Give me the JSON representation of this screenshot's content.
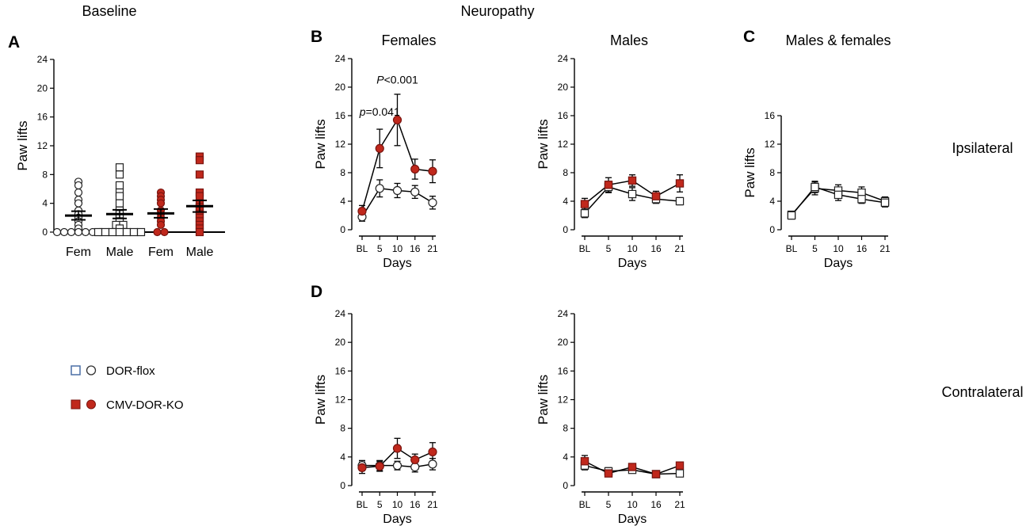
{
  "headers": {
    "baseline": "Baseline",
    "neuropathy": "Neuropathy",
    "ipsilateral": "Ipsilateral",
    "contralateral": "Contralateral"
  },
  "panel_letters": {
    "A": "A",
    "B": "B",
    "C": "C",
    "D": "D"
  },
  "legend": {
    "flox": "DOR-flox",
    "ko": "CMV-DOR-KO"
  },
  "colors": {
    "ko": "#c0281c",
    "ko_stroke": "#7a1510",
    "flox": "#ffffff",
    "axis": "#000000"
  },
  "chart_data": [
    {
      "id": "A",
      "type": "scatter",
      "title": "",
      "ylabel": "Paw lifts",
      "xlabel": "",
      "ylim": [
        0,
        24
      ],
      "yticks": [
        0,
        4,
        8,
        12,
        16,
        20,
        24
      ],
      "reference_line": 0,
      "categories": [
        "Fem",
        "Male",
        "Fem",
        "Male"
      ],
      "groups": [
        {
          "name": "DOR-flox Fem",
          "genotype": "flox",
          "marker": "circle",
          "points": [
            7,
            6.5,
            5.5,
            4.5,
            4,
            3,
            2.5,
            2,
            1.5,
            1,
            0.5,
            0,
            0,
            0,
            0,
            0,
            0,
            0
          ],
          "mean": 2.3,
          "sem": 0.6
        },
        {
          "name": "DOR-flox Male",
          "genotype": "flox",
          "marker": "square",
          "points": [
            9,
            8,
            6.5,
            5.5,
            5,
            4,
            3,
            2.5,
            2,
            1.5,
            1,
            1,
            0.5,
            0,
            0,
            0,
            0,
            0,
            0,
            0
          ],
          "mean": 2.5,
          "sem": 0.6
        },
        {
          "name": "CMV-DOR-KO Fem",
          "genotype": "ko",
          "marker": "circle",
          "points": [
            5.5,
            5,
            4.5,
            4,
            3,
            2.5,
            2,
            1.5,
            1,
            0,
            0
          ],
          "mean": 2.6,
          "sem": 0.6
        },
        {
          "name": "CMV-DOR-KO Male",
          "genotype": "ko",
          "marker": "square",
          "points": [
            10.5,
            10,
            8,
            5.5,
            5,
            4,
            3.5,
            3,
            2.5,
            2,
            1.5,
            1,
            0.5,
            0
          ],
          "mean": 3.6,
          "sem": 0.8
        }
      ]
    },
    {
      "id": "B-females",
      "type": "line",
      "title": "Females",
      "ylabel": "Paw lifts",
      "xlabel": "Days",
      "x": [
        "BL",
        "5",
        "10",
        "16",
        "21"
      ],
      "ylim": [
        0,
        24
      ],
      "yticks": [
        0,
        4,
        8,
        12,
        16,
        20,
        24
      ],
      "series": [
        {
          "name": "DOR-flox",
          "genotype": "flox",
          "marker": "circle",
          "values": [
            1.8,
            5.8,
            5.5,
            5.3,
            3.8
          ],
          "errors": [
            0.6,
            1.2,
            1.0,
            0.9,
            0.9
          ]
        },
        {
          "name": "CMV-DOR-KO",
          "genotype": "ko",
          "marker": "circle",
          "values": [
            2.6,
            11.4,
            15.4,
            8.5,
            8.2
          ],
          "errors": [
            0.8,
            2.7,
            3.6,
            1.4,
            1.6
          ]
        }
      ],
      "annotations": [
        {
          "italic": "p",
          "text": "=0.041",
          "x": "5",
          "y": 16
        },
        {
          "italic": "P",
          "text": "<0.001",
          "x": "10",
          "y": 20.5
        }
      ]
    },
    {
      "id": "B-males",
      "type": "line",
      "title": "Males",
      "ylabel": "Paw lifts",
      "xlabel": "Days",
      "x": [
        "BL",
        "5",
        "10",
        "16",
        "21"
      ],
      "ylim": [
        0,
        24
      ],
      "yticks": [
        0,
        4,
        8,
        12,
        16,
        20,
        24
      ],
      "series": [
        {
          "name": "DOR-flox",
          "genotype": "flox",
          "marker": "square",
          "values": [
            2.3,
            6.0,
            5.0,
            4.3,
            4.0
          ],
          "errors": [
            0.6,
            0.8,
            0.9,
            0.6,
            0.5
          ]
        },
        {
          "name": "CMV-DOR-KO",
          "genotype": "ko",
          "marker": "square",
          "values": [
            3.6,
            6.3,
            6.9,
            4.7,
            6.5
          ],
          "errors": [
            0.8,
            1.0,
            0.8,
            0.7,
            1.2
          ]
        }
      ],
      "annotations": []
    },
    {
      "id": "C",
      "type": "line",
      "title": "Males & females",
      "ylabel": "Paw lifts",
      "xlabel": "Days",
      "x": [
        "BL",
        "5",
        "10",
        "16",
        "21"
      ],
      "ylim": [
        0,
        16
      ],
      "yticks": [
        0,
        4,
        8,
        12,
        16
      ],
      "series": [
        {
          "name": "DOR-flox",
          "genotype": "flox",
          "marker": "square",
          "values": [
            2.1,
            5.8,
            5.5,
            5.2,
            4.0
          ],
          "errors": [
            0.5,
            0.9,
            0.8,
            0.8,
            0.6
          ]
        },
        {
          "name": "DOR-flox",
          "genotype": "flox",
          "marker": "square",
          "values": [
            2.0,
            6.0,
            4.9,
            4.3,
            3.8
          ],
          "errors": [
            0.5,
            0.8,
            0.8,
            0.6,
            0.6
          ]
        }
      ],
      "annotations": []
    },
    {
      "id": "D-females",
      "type": "line",
      "title": "",
      "ylabel": "Paw lifts",
      "xlabel": "Days",
      "x": [
        "BL",
        "5",
        "10",
        "16",
        "21"
      ],
      "ylim": [
        0,
        24
      ],
      "yticks": [
        0,
        4,
        8,
        12,
        16,
        20,
        24
      ],
      "series": [
        {
          "name": "DOR-flox",
          "genotype": "flox",
          "marker": "circle",
          "values": [
            2.8,
            2.8,
            2.8,
            2.6,
            3.0
          ],
          "errors": [
            0.7,
            0.7,
            0.6,
            0.7,
            0.8
          ]
        },
        {
          "name": "CMV-DOR-KO",
          "genotype": "ko",
          "marker": "circle",
          "values": [
            2.5,
            2.7,
            5.2,
            3.6,
            4.7
          ],
          "errors": [
            0.8,
            0.7,
            1.4,
            0.8,
            1.3
          ]
        }
      ],
      "annotations": []
    },
    {
      "id": "D-males",
      "type": "line",
      "title": "",
      "ylabel": "Paw lifts",
      "xlabel": "Days",
      "x": [
        "BL",
        "5",
        "10",
        "16",
        "21"
      ],
      "ylim": [
        0,
        24
      ],
      "yticks": [
        0,
        4,
        8,
        12,
        16,
        20,
        24
      ],
      "series": [
        {
          "name": "DOR-flox",
          "genotype": "flox",
          "marker": "square",
          "values": [
            2.8,
            2.0,
            2.2,
            1.6,
            1.7
          ],
          "errors": [
            0.6,
            0.5,
            0.4,
            0.4,
            0.4
          ]
        },
        {
          "name": "CMV-DOR-KO",
          "genotype": "ko",
          "marker": "square",
          "values": [
            3.4,
            1.7,
            2.6,
            1.6,
            2.8
          ],
          "errors": [
            0.8,
            0.4,
            0.4,
            0.4,
            0.5
          ]
        }
      ],
      "annotations": []
    }
  ]
}
